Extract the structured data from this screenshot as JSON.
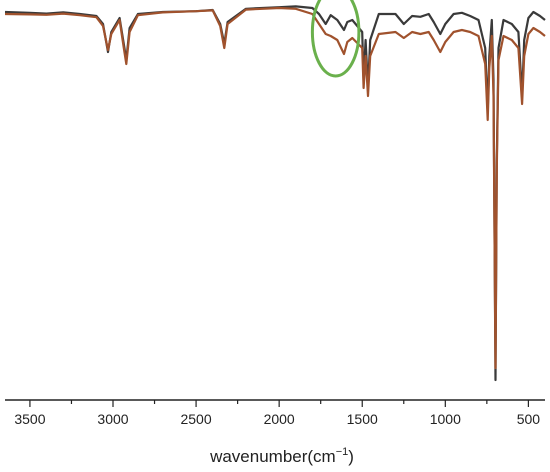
{
  "chart_data": {
    "type": "line",
    "title": "",
    "xlabel": "wavenumber(cm",
    "xlabel_sup": "−1",
    "xlabel_close": ")",
    "ylabel": "",
    "xlim": [
      3650,
      400
    ],
    "x_reversed": true,
    "ylim": [
      0,
      100
    ],
    "x_ticks": [
      3500,
      3000,
      2500,
      2000,
      1500,
      1000,
      500
    ],
    "grid": false,
    "legend": "none",
    "series": [
      {
        "color": "#3a3a3a",
        "points": [
          [
            3650,
            97.0
          ],
          [
            3500,
            96.8
          ],
          [
            3400,
            96.6
          ],
          [
            3300,
            96.9
          ],
          [
            3200,
            96.5
          ],
          [
            3100,
            96.0
          ],
          [
            3060,
            94.0
          ],
          [
            3030,
            87.0
          ],
          [
            3010,
            92.0
          ],
          [
            2960,
            95.5
          ],
          [
            2935,
            89.0
          ],
          [
            2920,
            85.0
          ],
          [
            2900,
            93.0
          ],
          [
            2850,
            96.5
          ],
          [
            2700,
            97.0
          ],
          [
            2500,
            97.2
          ],
          [
            2400,
            97.5
          ],
          [
            2355,
            94.0
          ],
          [
            2330,
            89.0
          ],
          [
            2310,
            94.5
          ],
          [
            2200,
            97.8
          ],
          [
            2000,
            98.2
          ],
          [
            1900,
            98.4
          ],
          [
            1800,
            98.0
          ],
          [
            1760,
            96.5
          ],
          [
            1720,
            94.0
          ],
          [
            1690,
            96.2
          ],
          [
            1650,
            95.0
          ],
          [
            1610,
            92.5
          ],
          [
            1590,
            94.5
          ],
          [
            1560,
            95.0
          ],
          [
            1500,
            92.0
          ],
          [
            1492,
            80.0
          ],
          [
            1480,
            90.0
          ],
          [
            1465,
            78.0
          ],
          [
            1452,
            90.0
          ],
          [
            1400,
            96.5
          ],
          [
            1300,
            96.5
          ],
          [
            1250,
            94.0
          ],
          [
            1200,
            96.0
          ],
          [
            1150,
            95.8
          ],
          [
            1100,
            96.5
          ],
          [
            1070,
            94.5
          ],
          [
            1030,
            91.5
          ],
          [
            1000,
            94.0
          ],
          [
            950,
            96.5
          ],
          [
            900,
            96.8
          ],
          [
            850,
            96.0
          ],
          [
            800,
            95.0
          ],
          [
            760,
            88.0
          ],
          [
            745,
            72.0
          ],
          [
            735,
            86.0
          ],
          [
            720,
            95.0
          ],
          [
            710,
            80.0
          ],
          [
            698,
            5.0
          ],
          [
            690,
            60.0
          ],
          [
            680,
            88.0
          ],
          [
            650,
            95.0
          ],
          [
            600,
            94.0
          ],
          [
            560,
            92.0
          ],
          [
            538,
            76.0
          ],
          [
            525,
            90.0
          ],
          [
            500,
            95.5
          ],
          [
            470,
            97.0
          ],
          [
            430,
            96.0
          ],
          [
            400,
            95.0
          ]
        ]
      },
      {
        "color": "#a0522d",
        "points": [
          [
            3650,
            96.5
          ],
          [
            3500,
            96.4
          ],
          [
            3400,
            96.3
          ],
          [
            3300,
            96.6
          ],
          [
            3200,
            96.2
          ],
          [
            3100,
            95.7
          ],
          [
            3060,
            93.5
          ],
          [
            3030,
            87.5
          ],
          [
            3010,
            91.5
          ],
          [
            2960,
            95.0
          ],
          [
            2935,
            88.0
          ],
          [
            2920,
            84.0
          ],
          [
            2900,
            92.0
          ],
          [
            2850,
            96.2
          ],
          [
            2700,
            96.9
          ],
          [
            2500,
            97.2
          ],
          [
            2400,
            97.4
          ],
          [
            2355,
            93.5
          ],
          [
            2330,
            88.0
          ],
          [
            2310,
            94.0
          ],
          [
            2200,
            97.6
          ],
          [
            2000,
            98.0
          ],
          [
            1900,
            97.8
          ],
          [
            1800,
            96.5
          ],
          [
            1760,
            94.0
          ],
          [
            1720,
            91.5
          ],
          [
            1690,
            91.0
          ],
          [
            1650,
            90.0
          ],
          [
            1610,
            86.5
          ],
          [
            1590,
            89.5
          ],
          [
            1560,
            90.5
          ],
          [
            1500,
            88.0
          ],
          [
            1492,
            78.0
          ],
          [
            1480,
            86.0
          ],
          [
            1465,
            76.0
          ],
          [
            1452,
            86.0
          ],
          [
            1400,
            91.5
          ],
          [
            1300,
            92.0
          ],
          [
            1250,
            90.5
          ],
          [
            1200,
            92.0
          ],
          [
            1150,
            91.5
          ],
          [
            1100,
            92.0
          ],
          [
            1070,
            90.0
          ],
          [
            1030,
            87.0
          ],
          [
            1000,
            89.5
          ],
          [
            950,
            92.0
          ],
          [
            900,
            92.5
          ],
          [
            850,
            92.0
          ],
          [
            800,
            91.0
          ],
          [
            760,
            84.0
          ],
          [
            745,
            70.0
          ],
          [
            735,
            83.0
          ],
          [
            720,
            91.0
          ],
          [
            710,
            76.0
          ],
          [
            698,
            8.0
          ],
          [
            690,
            58.0
          ],
          [
            680,
            85.0
          ],
          [
            650,
            91.0
          ],
          [
            600,
            90.0
          ],
          [
            560,
            88.0
          ],
          [
            538,
            74.0
          ],
          [
            525,
            86.0
          ],
          [
            500,
            91.5
          ],
          [
            470,
            93.0
          ],
          [
            430,
            92.0
          ],
          [
            400,
            91.0
          ]
        ]
      }
    ],
    "annotations": [
      {
        "type": "ellipse",
        "color": "#6ab04c",
        "cx": 1660,
        "cy": 92,
        "rx": 140,
        "ry": 11
      }
    ]
  }
}
